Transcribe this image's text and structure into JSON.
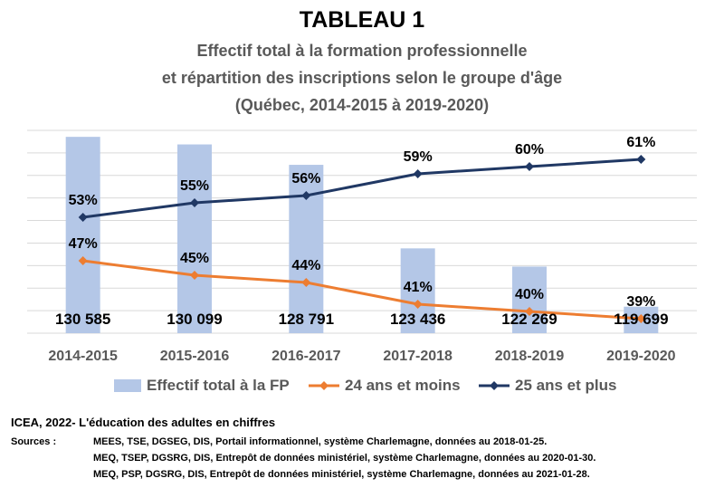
{
  "chart_data": {
    "type": "bar+line",
    "title": "TABLEAU 1",
    "subtitle_lines": [
      "Effectif total à la formation professionnelle",
      "et répartition des inscriptions selon le groupe d'âge",
      "(Québec, 2014-2015 à 2019-2020)"
    ],
    "categories": [
      "2014-2015",
      "2015-2016",
      "2016-2017",
      "2017-2018",
      "2018-2019",
      "2019-2020"
    ],
    "bar_series": {
      "name": "Effectif total à la FP",
      "values": [
        130585,
        130099,
        128791,
        123436,
        122269,
        119699
      ],
      "value_labels": [
        "130 585",
        "130 099",
        "128 791",
        "123 436",
        "122 269",
        "119 699"
      ],
      "axis_min": 118000,
      "axis_max": 131000
    },
    "line_series": [
      {
        "name": "24 ans et moins",
        "values": [
          47,
          45,
          44,
          41,
          40,
          39
        ],
        "value_labels": [
          "47%",
          "45%",
          "44%",
          "41%",
          "40%",
          "39%"
        ]
      },
      {
        "name": "25 ans et plus",
        "values": [
          53,
          55,
          56,
          59,
          60,
          61
        ],
        "value_labels": [
          "53%",
          "55%",
          "56%",
          "59%",
          "60%",
          "61%"
        ]
      }
    ],
    "line_axis": {
      "min": 37,
      "max": 65
    },
    "legend": [
      "Effectif total à la FP",
      "24 ans et moins",
      "25 ans et plus"
    ],
    "colors": {
      "bars": "#b4c7e7",
      "young": "#ed7d31",
      "old": "#203864",
      "grid": "#d9d9d9"
    }
  },
  "footer": {
    "heading": "ICEA, 2022- L'éducation des adultes en chiffres",
    "sources_label": "Sources :",
    "sources": [
      "MEES, TSE, DGSEG, DIS, Portail informationnel, système Charlemagne, données au 2018-01-25.",
      "MEQ, TSEP, DGSRG, DIS, Entrepôt de données ministériel, système Charlemagne, données au 2020-01-30.",
      "MEQ, PSP, DGSRG, DIS, Entrepôt de données ministériel, système Charlemagne, données au 2021-01-28."
    ]
  }
}
